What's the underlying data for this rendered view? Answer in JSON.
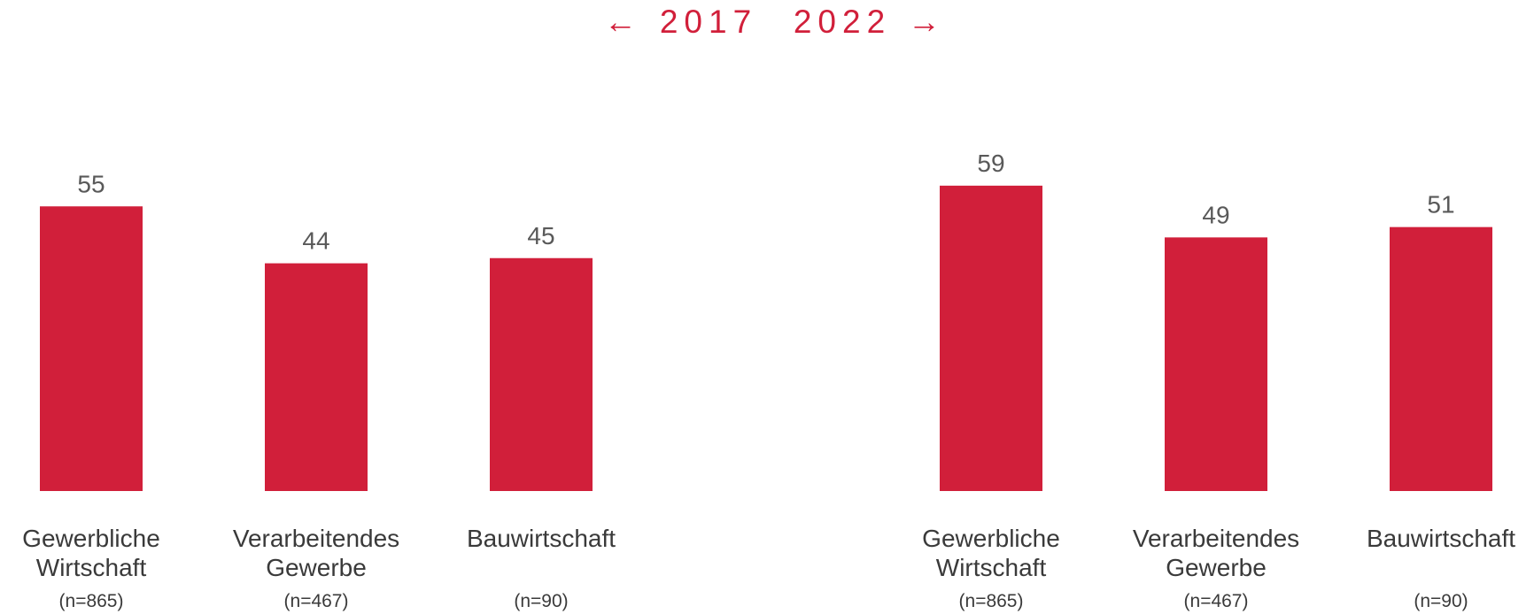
{
  "header": {
    "left_arrow": "←",
    "year_left": "2017",
    "year_right": "2022",
    "right_arrow": "→"
  },
  "colors": {
    "bar": "#d11f3a",
    "header": "#d11f3a",
    "text": "#3a3a3a",
    "value_text": "#595959"
  },
  "chart_data": [
    {
      "type": "bar",
      "group": "2017",
      "categories": [
        [
          "Gewerbliche",
          "Wirtschaft"
        ],
        [
          "Verarbeitendes",
          "Gewerbe"
        ],
        [
          "Bauwirtschaft"
        ]
      ],
      "sample_sizes": [
        "(n=865)",
        "(n=467)",
        "(n=90)"
      ],
      "values": [
        55,
        44,
        45
      ],
      "data_labels": [
        "55",
        "44",
        "45"
      ],
      "grid": false,
      "legend": "none"
    },
    {
      "type": "bar",
      "group": "2022",
      "categories": [
        [
          "Gewerbliche",
          "Wirtschaft"
        ],
        [
          "Verarbeitendes",
          "Gewerbe"
        ],
        [
          "Bauwirtschaft"
        ]
      ],
      "sample_sizes": [
        "(n=865)",
        "(n=467)",
        "(n=90)"
      ],
      "values": [
        59,
        49,
        51
      ],
      "data_labels": [
        "59",
        "49",
        "51"
      ],
      "grid": false,
      "legend": "none"
    }
  ]
}
